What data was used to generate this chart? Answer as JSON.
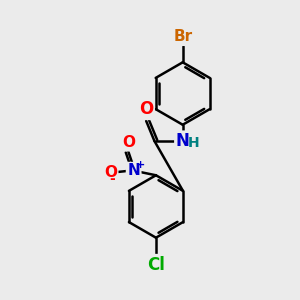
{
  "bg_color": "#ebebeb",
  "bond_color": "#000000",
  "bond_width": 1.8,
  "atom_colors": {
    "Br": "#cc6600",
    "O": "#ff0000",
    "N_amide": "#0000cc",
    "H": "#008080",
    "N_nitro": "#0000cc",
    "O_nitro": "#ff0000",
    "Cl": "#00aa00"
  },
  "font_size": 11
}
